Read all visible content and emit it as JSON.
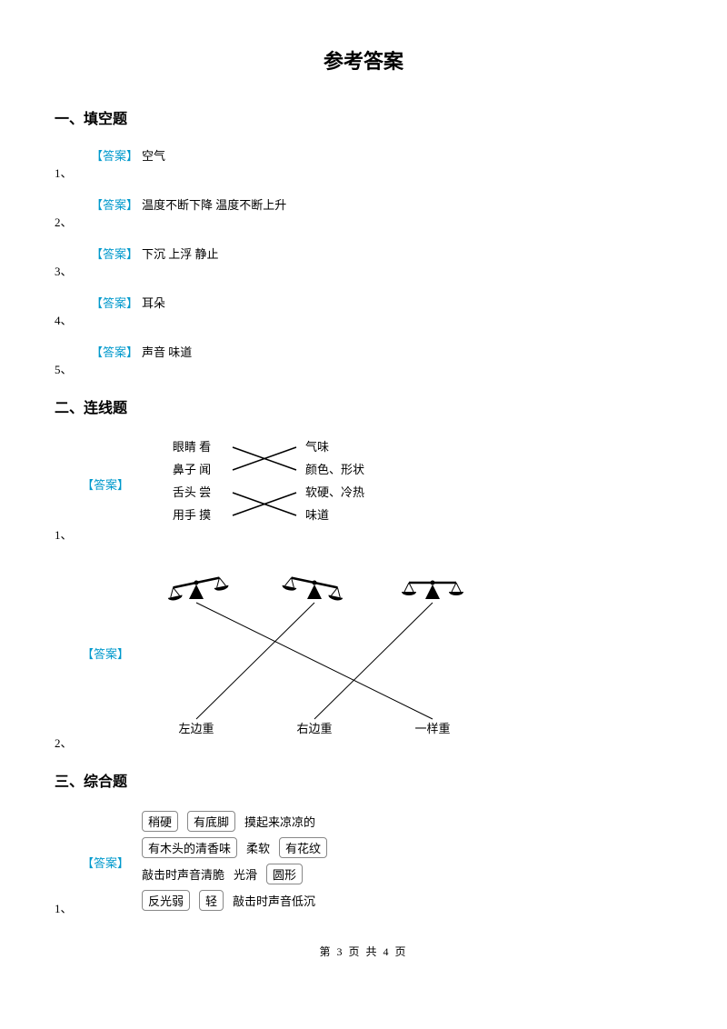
{
  "title": "参考答案",
  "sections": {
    "fill": {
      "heading": "一、填空题",
      "label": "【答案】",
      "items": [
        {
          "num": "1、",
          "answer": "空气"
        },
        {
          "num": "2、",
          "answer": "温度不断下降 温度不断上升"
        },
        {
          "num": "3、",
          "answer": "下沉 上浮 静止"
        },
        {
          "num": "4、",
          "answer": "耳朵"
        },
        {
          "num": "5、",
          "answer": "声音 味道"
        }
      ]
    },
    "match": {
      "heading": "二、连线题",
      "label": "【答案】",
      "q1": {
        "num": "1、",
        "left": [
          "眼睛 看",
          "鼻子 闻",
          "舌头 尝",
          "用手 摸"
        ],
        "right": [
          "气味",
          "颜色、形状",
          "软硬、冷热",
          "味道"
        ],
        "edges": [
          [
            0,
            1
          ],
          [
            1,
            0
          ],
          [
            2,
            3
          ],
          [
            3,
            2
          ]
        ],
        "style": {
          "line_color": "#000000",
          "line_width": 1.5,
          "fontsize": 13
        }
      },
      "q2": {
        "num": "2、",
        "labels": [
          "左边重",
          "右边重",
          "一样重"
        ],
        "scales": [
          {
            "tilt": "right"
          },
          {
            "tilt": "left"
          },
          {
            "tilt": "level"
          }
        ],
        "edges": [
          [
            0,
            2
          ],
          [
            1,
            0
          ],
          [
            2,
            1
          ]
        ],
        "style": {
          "line_color": "#000000",
          "line_width": 1,
          "fontsize": 13
        }
      }
    },
    "comp": {
      "heading": "三、综合题",
      "label": "【答案】",
      "q1": {
        "num": "1、",
        "rows": [
          [
            {
              "t": "稍硬",
              "b": true
            },
            {
              "t": "有底脚",
              "b": true
            },
            {
              "t": "摸起来凉凉的",
              "b": false
            }
          ],
          [
            {
              "t": "有木头的清香味",
              "b": true
            },
            {
              "t": "柔软",
              "b": false
            },
            {
              "t": "有花纹",
              "b": true
            }
          ],
          [
            {
              "t": "敲击时声音清脆",
              "b": false
            },
            {
              "t": "光滑",
              "b": false
            },
            {
              "t": "圆形",
              "b": true
            }
          ],
          [
            {
              "t": "反光弱",
              "b": true
            },
            {
              "t": "轻",
              "b": true
            },
            {
              "t": "敲击时声音低沉",
              "b": false
            }
          ]
        ]
      }
    }
  },
  "footer": "第 3 页 共 4 页"
}
